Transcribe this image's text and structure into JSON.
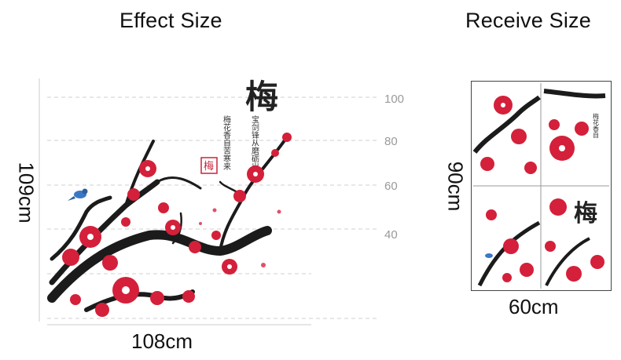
{
  "headings": {
    "effect_size": "Effect Size",
    "receive_size": "Receive Size"
  },
  "effect": {
    "height_label": "109cm",
    "width_label": "108cm",
    "ticks": [
      "100",
      "80",
      "60",
      "40"
    ]
  },
  "receive": {
    "height_label": "90cm",
    "width_label": "60cm",
    "panel_count": 4
  },
  "artwork": {
    "title_glyph": "梅",
    "poem_col_1": "宝剑锋从磨砺出",
    "poem_col_2": "梅花香自苦寒来",
    "seal_glyph": "梅"
  },
  "colors": {
    "blossom": "#d4203a",
    "blossom_dark": "#a3162b",
    "branch": "#1b1b1b",
    "grid": "#cfcfcf",
    "tick_text": "#9a9a9a",
    "bird": "#3b78c4"
  }
}
